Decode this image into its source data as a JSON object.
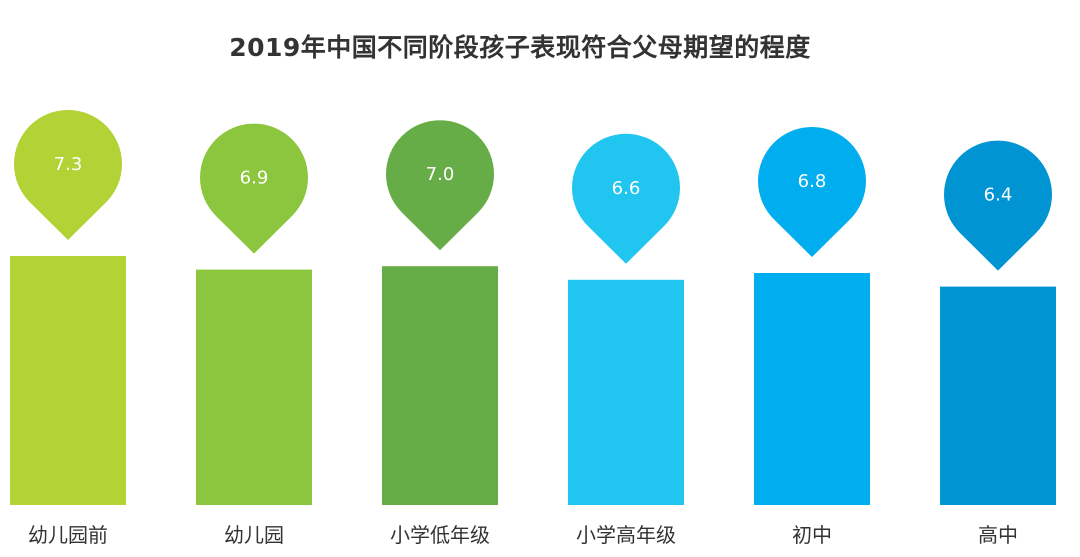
{
  "chart_data": {
    "type": "bar",
    "title": "2019年中国不同阶段孩子表现符合父母期望的程度",
    "categories": [
      "幼儿园前",
      "幼儿园",
      "小学低年级",
      "小学高年级",
      "初中",
      "高中"
    ],
    "values": [
      7.3,
      6.9,
      7.0,
      6.6,
      6.8,
      6.4
    ],
    "colors": [
      "#b2d235",
      "#8cc63f",
      "#67ad47",
      "#20c5f0",
      "#00aeef",
      "#0094d2"
    ],
    "data_label_style": "map-pin marker above each bar",
    "grid": false,
    "legend": "none"
  }
}
